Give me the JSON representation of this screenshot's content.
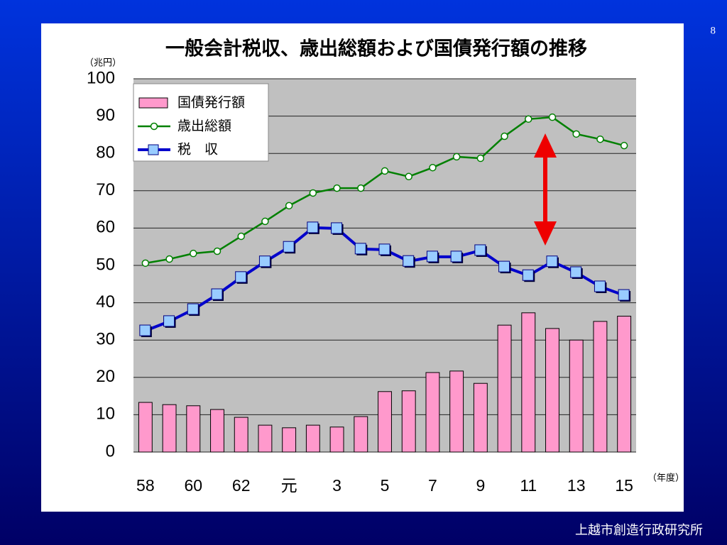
{
  "page_number": "8",
  "footer": "上越市創造行政研究所",
  "chart_data": {
    "type": "combo",
    "title": "一般会計税収、歳出総額および国債発行額の推移",
    "y_unit": "（兆円）",
    "x_unit": "（年度）",
    "categories": [
      "58",
      null,
      "60",
      null,
      "62",
      null,
      "元",
      null,
      "3",
      null,
      "5",
      null,
      "7",
      null,
      "9",
      null,
      "11",
      null,
      "13",
      null,
      "15"
    ],
    "ylim": [
      0,
      100
    ],
    "yticks": [
      0,
      10,
      20,
      30,
      40,
      50,
      60,
      70,
      80,
      90,
      100
    ],
    "grid": true,
    "legend": "top-left",
    "series": [
      {
        "name": "国債発行額",
        "type": "bar",
        "color": "#ff99cc",
        "values": [
          13.3,
          12.7,
          12.4,
          11.4,
          9.3,
          7.2,
          6.5,
          7.2,
          6.7,
          9.5,
          16.2,
          16.4,
          21.3,
          21.7,
          18.4,
          34.0,
          37.3,
          33.1,
          30.0,
          35.0,
          36.4
        ]
      },
      {
        "name": "歳出総額",
        "type": "line",
        "color": "#008000",
        "values": [
          50.6,
          51.7,
          53.2,
          53.8,
          57.8,
          61.8,
          66.0,
          69.4,
          70.7,
          70.7,
          75.3,
          73.8,
          76.2,
          79.1,
          78.7,
          84.6,
          89.2,
          89.7,
          85.2,
          83.8,
          82.1
        ]
      },
      {
        "name": "税　収",
        "type": "line",
        "color": "#0000cc",
        "values": [
          32.5,
          35.0,
          38.2,
          42.2,
          46.8,
          51.0,
          54.9,
          60.1,
          59.9,
          54.4,
          54.2,
          51.1,
          52.3,
          52.3,
          54.0,
          49.6,
          47.3,
          51.0,
          48.1,
          44.3,
          42.0
        ]
      }
    ]
  }
}
